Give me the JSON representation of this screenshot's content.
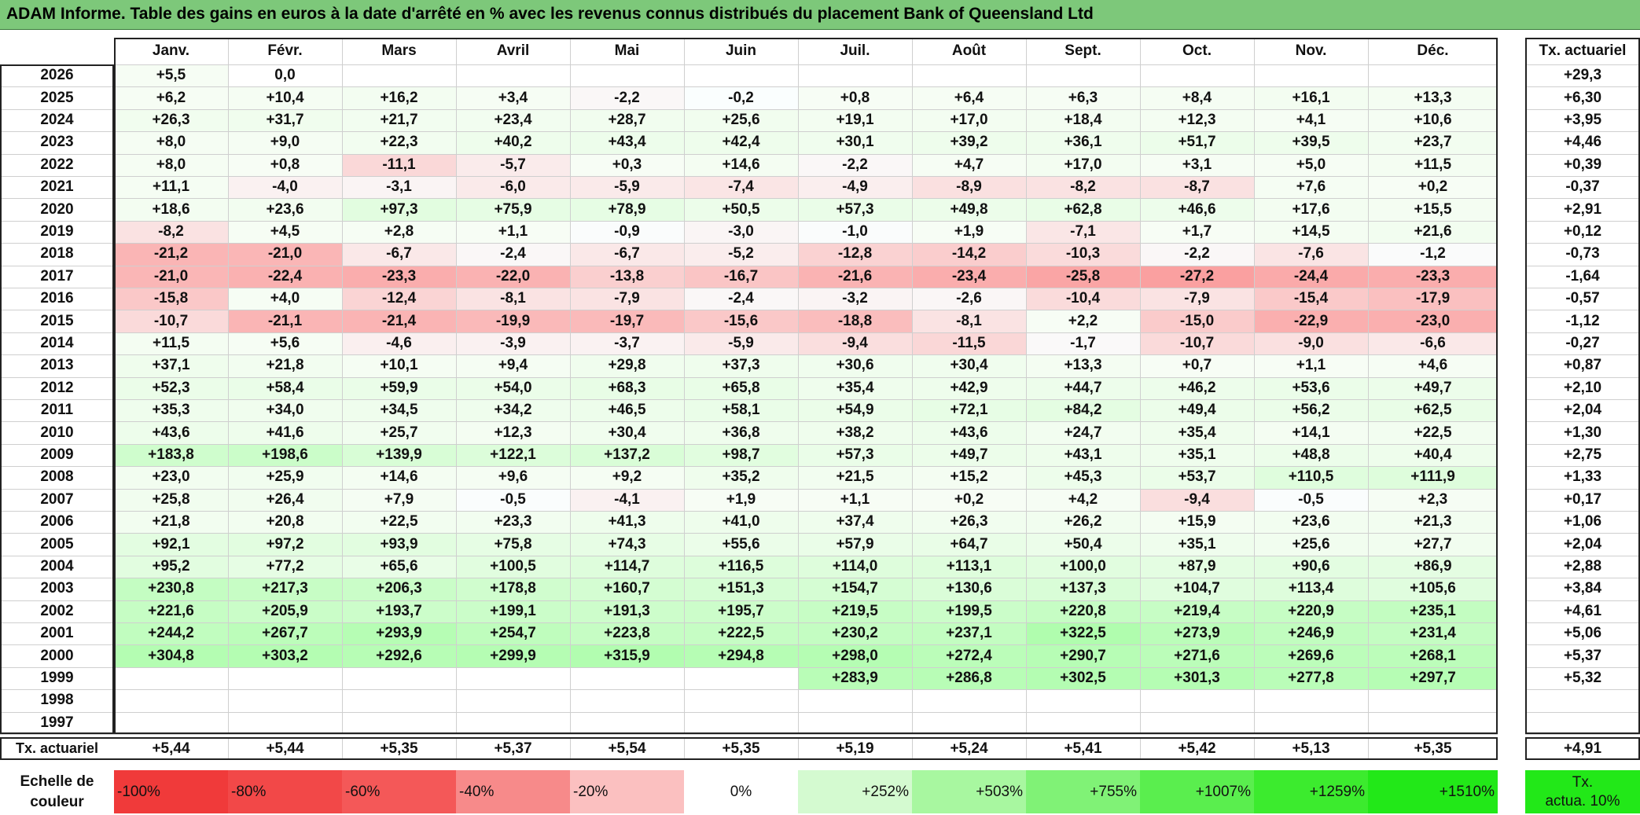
{
  "title": "ADAM Informe. Table des gains en euros à la date d'arrêté en % avec les revenus connus distribués du placement Bank of Queensland Ltd",
  "months": [
    "Janv.",
    "Févr.",
    "Mars",
    "Avril",
    "Mai",
    "Juin",
    "Juil.",
    "Août",
    "Sept.",
    "Oct.",
    "Nov.",
    "Déc."
  ],
  "actuarial_header": "Tx. actuariel",
  "rows": [
    {
      "year": "2026",
      "values": [
        "+5,5",
        "0,0",
        "",
        "",
        "",
        "",
        "",
        "",
        "",
        "",
        "",
        ""
      ],
      "rate": "+29,3"
    },
    {
      "year": "2025",
      "values": [
        "+6,2",
        "+10,4",
        "+16,2",
        "+3,4",
        "-2,2",
        "-0,2",
        "+0,8",
        "+6,4",
        "+6,3",
        "+8,4",
        "+16,1",
        "+13,3"
      ],
      "rate": "+6,30"
    },
    {
      "year": "2024",
      "values": [
        "+26,3",
        "+31,7",
        "+21,7",
        "+23,4",
        "+28,7",
        "+25,6",
        "+19,1",
        "+17,0",
        "+18,4",
        "+12,3",
        "+4,1",
        "+10,6"
      ],
      "rate": "+3,95"
    },
    {
      "year": "2023",
      "values": [
        "+8,0",
        "+9,0",
        "+22,3",
        "+40,2",
        "+43,4",
        "+42,4",
        "+30,1",
        "+39,2",
        "+36,1",
        "+51,7",
        "+39,5",
        "+23,7"
      ],
      "rate": "+4,46"
    },
    {
      "year": "2022",
      "values": [
        "+8,0",
        "+0,8",
        "-11,1",
        "-5,7",
        "+0,3",
        "+14,6",
        "-2,2",
        "+4,7",
        "+17,0",
        "+3,1",
        "+5,0",
        "+11,5"
      ],
      "rate": "+0,39"
    },
    {
      "year": "2021",
      "values": [
        "+11,1",
        "-4,0",
        "-3,1",
        "-6,0",
        "-5,9",
        "-7,4",
        "-4,9",
        "-8,9",
        "-8,2",
        "-8,7",
        "+7,6",
        "+0,2"
      ],
      "rate": "-0,37"
    },
    {
      "year": "2020",
      "values": [
        "+18,6",
        "+23,6",
        "+97,3",
        "+75,9",
        "+78,9",
        "+50,5",
        "+57,3",
        "+49,8",
        "+62,8",
        "+46,6",
        "+17,6",
        "+15,5"
      ],
      "rate": "+2,91"
    },
    {
      "year": "2019",
      "values": [
        "-8,2",
        "+4,5",
        "+2,8",
        "+1,1",
        "-0,9",
        "-3,0",
        "-1,0",
        "+1,9",
        "-7,1",
        "+1,7",
        "+14,5",
        "+21,6"
      ],
      "rate": "+0,12"
    },
    {
      "year": "2018",
      "values": [
        "-21,2",
        "-21,0",
        "-6,7",
        "-2,4",
        "-6,7",
        "-5,2",
        "-12,8",
        "-14,2",
        "-10,3",
        "-2,2",
        "-7,6",
        "-1,2"
      ],
      "rate": "-0,73"
    },
    {
      "year": "2017",
      "values": [
        "-21,0",
        "-22,4",
        "-23,3",
        "-22,0",
        "-13,8",
        "-16,7",
        "-21,6",
        "-23,4",
        "-25,8",
        "-27,2",
        "-24,4",
        "-23,3"
      ],
      "rate": "-1,64"
    },
    {
      "year": "2016",
      "values": [
        "-15,8",
        "+4,0",
        "-12,4",
        "-8,1",
        "-7,9",
        "-2,4",
        "-3,2",
        "-2,6",
        "-10,4",
        "-7,9",
        "-15,4",
        "-17,9"
      ],
      "rate": "-0,57"
    },
    {
      "year": "2015",
      "values": [
        "-10,7",
        "-21,1",
        "-21,4",
        "-19,9",
        "-19,7",
        "-15,6",
        "-18,8",
        "-8,1",
        "+2,2",
        "-15,0",
        "-22,9",
        "-23,0"
      ],
      "rate": "-1,12"
    },
    {
      "year": "2014",
      "values": [
        "+11,5",
        "+5,6",
        "-4,6",
        "-3,9",
        "-3,7",
        "-5,9",
        "-9,4",
        "-11,5",
        "-1,7",
        "-10,7",
        "-9,0",
        "-6,6"
      ],
      "rate": "-0,27"
    },
    {
      "year": "2013",
      "values": [
        "+37,1",
        "+21,8",
        "+10,1",
        "+9,4",
        "+29,8",
        "+37,3",
        "+30,6",
        "+30,4",
        "+13,3",
        "+0,7",
        "+1,1",
        "+4,6"
      ],
      "rate": "+0,87"
    },
    {
      "year": "2012",
      "values": [
        "+52,3",
        "+58,4",
        "+59,9",
        "+54,0",
        "+68,3",
        "+65,8",
        "+35,4",
        "+42,9",
        "+44,7",
        "+46,2",
        "+53,6",
        "+49,7"
      ],
      "rate": "+2,10"
    },
    {
      "year": "2011",
      "values": [
        "+35,3",
        "+34,0",
        "+34,5",
        "+34,2",
        "+46,5",
        "+58,1",
        "+54,9",
        "+72,1",
        "+84,2",
        "+49,4",
        "+56,2",
        "+62,5"
      ],
      "rate": "+2,04"
    },
    {
      "year": "2010",
      "values": [
        "+43,6",
        "+41,6",
        "+25,7",
        "+12,3",
        "+30,4",
        "+36,8",
        "+38,2",
        "+43,6",
        "+24,7",
        "+35,4",
        "+14,1",
        "+22,5"
      ],
      "rate": "+1,30"
    },
    {
      "year": "2009",
      "values": [
        "+183,8",
        "+198,6",
        "+139,9",
        "+122,1",
        "+137,2",
        "+98,7",
        "+57,3",
        "+49,7",
        "+43,1",
        "+35,1",
        "+48,8",
        "+40,4"
      ],
      "rate": "+2,75"
    },
    {
      "year": "2008",
      "values": [
        "+23,0",
        "+25,9",
        "+14,6",
        "+9,6",
        "+9,2",
        "+35,2",
        "+21,5",
        "+15,2",
        "+45,3",
        "+53,7",
        "+110,5",
        "+111,9"
      ],
      "rate": "+1,33"
    },
    {
      "year": "2007",
      "values": [
        "+25,8",
        "+26,4",
        "+7,9",
        "-0,5",
        "-4,1",
        "+1,9",
        "+1,1",
        "+0,2",
        "+4,2",
        "-9,4",
        "-0,5",
        "+2,3"
      ],
      "rate": "+0,17"
    },
    {
      "year": "2006",
      "values": [
        "+21,8",
        "+20,8",
        "+22,5",
        "+23,3",
        "+41,3",
        "+41,0",
        "+37,4",
        "+26,3",
        "+26,2",
        "+15,9",
        "+23,6",
        "+21,3"
      ],
      "rate": "+1,06"
    },
    {
      "year": "2005",
      "values": [
        "+92,1",
        "+97,2",
        "+93,9",
        "+75,8",
        "+74,3",
        "+55,6",
        "+57,9",
        "+64,7",
        "+50,4",
        "+35,1",
        "+25,6",
        "+27,7"
      ],
      "rate": "+2,04"
    },
    {
      "year": "2004",
      "values": [
        "+95,2",
        "+77,2",
        "+65,6",
        "+100,5",
        "+114,7",
        "+116,5",
        "+114,0",
        "+113,1",
        "+100,0",
        "+87,9",
        "+90,6",
        "+86,9"
      ],
      "rate": "+2,88"
    },
    {
      "year": "2003",
      "values": [
        "+230,8",
        "+217,3",
        "+206,3",
        "+178,8",
        "+160,7",
        "+151,3",
        "+154,7",
        "+130,6",
        "+137,3",
        "+104,7",
        "+113,4",
        "+105,6"
      ],
      "rate": "+3,84"
    },
    {
      "year": "2002",
      "values": [
        "+221,6",
        "+205,9",
        "+193,7",
        "+199,1",
        "+191,3",
        "+195,7",
        "+219,5",
        "+199,5",
        "+220,8",
        "+219,4",
        "+220,9",
        "+235,1"
      ],
      "rate": "+4,61"
    },
    {
      "year": "2001",
      "values": [
        "+244,2",
        "+267,7",
        "+293,9",
        "+254,7",
        "+223,8",
        "+222,5",
        "+230,2",
        "+237,1",
        "+322,5",
        "+273,9",
        "+246,9",
        "+231,4"
      ],
      "rate": "+5,06"
    },
    {
      "year": "2000",
      "values": [
        "+304,8",
        "+303,2",
        "+292,6",
        "+299,9",
        "+315,9",
        "+294,8",
        "+298,0",
        "+272,4",
        "+290,7",
        "+271,6",
        "+269,6",
        "+268,1"
      ],
      "rate": "+5,37"
    },
    {
      "year": "1999",
      "values": [
        "",
        "",
        "",
        "",
        "",
        "",
        "+283,9",
        "+286,8",
        "+302,5",
        "+301,3",
        "+277,8",
        "+297,7"
      ],
      "rate": "+5,32"
    },
    {
      "year": "1998",
      "values": [
        "",
        "",
        "",
        "",
        "",
        "",
        "",
        "",
        "",
        "",
        "",
        ""
      ],
      "rate": ""
    },
    {
      "year": "1997",
      "values": [
        "",
        "",
        "",
        "",
        "",
        "",
        "",
        "",
        "",
        "",
        "",
        ""
      ],
      "rate": ""
    }
  ],
  "footer": {
    "label": "Tx. actuariel",
    "values": [
      "+5,44",
      "+5,44",
      "+5,35",
      "+5,37",
      "+5,54",
      "+5,35",
      "+5,19",
      "+5,24",
      "+5,41",
      "+5,42",
      "+5,13",
      "+5,35"
    ],
    "total": "+4,91"
  },
  "scale": {
    "label_line1": "Echelle de",
    "label_line2": "couleur",
    "items": [
      {
        "text": "-100%",
        "color": "#f03a3a",
        "align": "left"
      },
      {
        "text": "-80%",
        "color": "#f24848",
        "align": "left"
      },
      {
        "text": "-60%",
        "color": "#f45858",
        "align": "left"
      },
      {
        "text": "-40%",
        "color": "#f78a8a",
        "align": "left"
      },
      {
        "text": "-20%",
        "color": "#fbc0c0",
        "align": "left"
      },
      {
        "text": "0%",
        "color": "#ffffff",
        "align": "center"
      },
      {
        "text": "+252%",
        "color": "#d4fad0",
        "align": "right"
      },
      {
        "text": "+503%",
        "color": "#a8f7a0",
        "align": "right"
      },
      {
        "text": "+755%",
        "color": "#80f276",
        "align": "right"
      },
      {
        "text": "+1007%",
        "color": "#5aee4e",
        "align": "right"
      },
      {
        "text": "+1259%",
        "color": "#3ceb2e",
        "align": "right"
      },
      {
        "text": "+1510%",
        "color": "#22e818",
        "align": "right"
      }
    ],
    "legend_line1": "Tx.",
    "legend_line2": "actua. 10%",
    "legend_color": "#22e818"
  },
  "colors": {
    "header_green": "#7dc87a",
    "negative": "#f03a3a",
    "positive": "#22e818"
  }
}
